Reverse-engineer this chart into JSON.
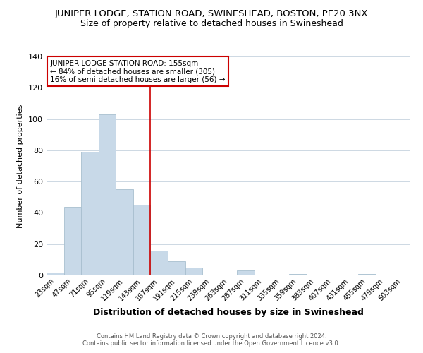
{
  "title": "JUNIPER LODGE, STATION ROAD, SWINESHEAD, BOSTON, PE20 3NX",
  "subtitle": "Size of property relative to detached houses in Swineshead",
  "xlabel": "Distribution of detached houses by size in Swineshead",
  "ylabel": "Number of detached properties",
  "bar_labels": [
    "23sqm",
    "47sqm",
    "71sqm",
    "95sqm",
    "119sqm",
    "143sqm",
    "167sqm",
    "191sqm",
    "215sqm",
    "239sqm",
    "263sqm",
    "287sqm",
    "311sqm",
    "335sqm",
    "359sqm",
    "383sqm",
    "407sqm",
    "431sqm",
    "455sqm",
    "479sqm",
    "503sqm"
  ],
  "bar_values": [
    2,
    44,
    79,
    103,
    55,
    45,
    16,
    9,
    5,
    0,
    0,
    3,
    0,
    0,
    1,
    0,
    0,
    0,
    1,
    0,
    0
  ],
  "bar_color": "#c8d9e8",
  "bar_edge_color": "#a8bfcf",
  "ylim": [
    0,
    140
  ],
  "yticks": [
    0,
    20,
    40,
    60,
    80,
    100,
    120,
    140
  ],
  "red_line_x": 5.5,
  "annotation_title": "JUNIPER LODGE STATION ROAD: 155sqm",
  "annotation_line1": "← 84% of detached houses are smaller (305)",
  "annotation_line2": "16% of semi-detached houses are larger (56) →",
  "annotation_box_color": "#ffffff",
  "annotation_box_edge": "#cc0000",
  "red_line_color": "#cc0000",
  "footer1": "Contains HM Land Registry data © Crown copyright and database right 2024.",
  "footer2": "Contains public sector information licensed under the Open Government Licence v3.0.",
  "background_color": "#ffffff",
  "grid_color": "#cdd8e3",
  "title_fontsize": 9.5,
  "subtitle_fontsize": 9,
  "xlabel_fontsize": 9,
  "ylabel_fontsize": 8
}
